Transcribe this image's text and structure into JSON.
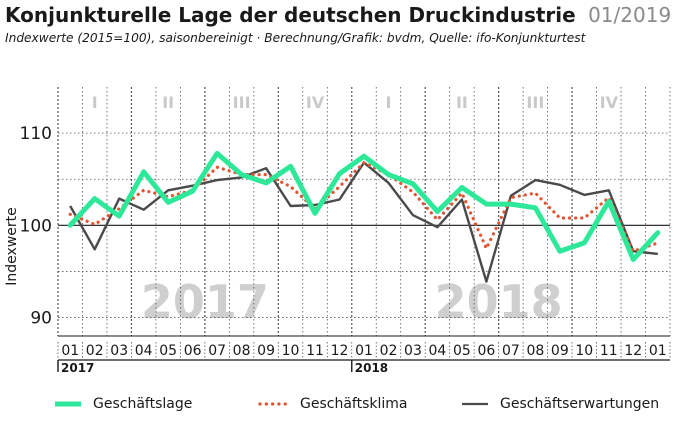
{
  "header": {
    "title": "Konjunkturelle Lage der deutschen Druckindustrie",
    "period": "01/2019",
    "subtitle": "Indexwerte (2015=100), saisonbereinigt · Berechnung/Grafik: bvdm, Quelle: ifo-Konjunkturtest"
  },
  "colors": {
    "lage": "#2ee89a",
    "klima": "#e2532f",
    "erwartungen": "#4a4a4a",
    "quarter_label": "#c9c9c9",
    "year_watermark": "#cfcfcf"
  },
  "chart_data": {
    "type": "line",
    "ylabel": "Indexwerte",
    "ylim": [
      88,
      115
    ],
    "yticks": [
      90,
      100,
      110
    ],
    "reference_line": 100,
    "grid": "dashed",
    "x": [
      "01",
      "02",
      "03",
      "04",
      "05",
      "06",
      "07",
      "08",
      "09",
      "10",
      "11",
      "12",
      "01",
      "02",
      "03",
      "04",
      "05",
      "06",
      "07",
      "08",
      "09",
      "10",
      "11",
      "12",
      "01"
    ],
    "years": [
      {
        "label": "2017",
        "start_index": 0
      },
      {
        "label": "2018",
        "start_index": 12
      }
    ],
    "quarters": [
      {
        "label": "I",
        "start_index": 0
      },
      {
        "label": "II",
        "start_index": 3
      },
      {
        "label": "III",
        "start_index": 6
      },
      {
        "label": "IV",
        "start_index": 9
      },
      {
        "label": "I",
        "start_index": 12
      },
      {
        "label": "II",
        "start_index": 15
      },
      {
        "label": "III",
        "start_index": 18
      },
      {
        "label": "IV",
        "start_index": 21
      }
    ],
    "series": [
      {
        "name": "Geschäftslage",
        "style": "solid-thick",
        "values": [
          100.0,
          102.9,
          101.0,
          105.8,
          102.5,
          103.7,
          107.8,
          105.5,
          104.6,
          106.4,
          101.3,
          105.6,
          107.5,
          105.5,
          104.5,
          101.5,
          104.1,
          102.3,
          102.3,
          101.9,
          97.2,
          98.1,
          102.6,
          96.3,
          99.2
        ]
      },
      {
        "name": "Geschäftsklima",
        "style": "dotted",
        "values": [
          101.2,
          100.1,
          101.8,
          103.8,
          103.1,
          103.8,
          106.3,
          105.5,
          105.5,
          104.2,
          101.8,
          104.2,
          106.8,
          105.5,
          103.6,
          100.6,
          103.5,
          97.5,
          103.0,
          103.5,
          100.8,
          100.8,
          103.0,
          97.2,
          98.1
        ]
      },
      {
        "name": "Geschäftserwartungen",
        "style": "solid-thin",
        "values": [
          102.1,
          97.4,
          102.9,
          101.7,
          103.8,
          104.3,
          104.9,
          105.2,
          106.2,
          102.1,
          102.2,
          102.8,
          106.8,
          104.6,
          101.1,
          99.8,
          102.8,
          93.9,
          103.2,
          104.9,
          104.4,
          103.3,
          103.8,
          97.2,
          96.9
        ]
      }
    ]
  }
}
